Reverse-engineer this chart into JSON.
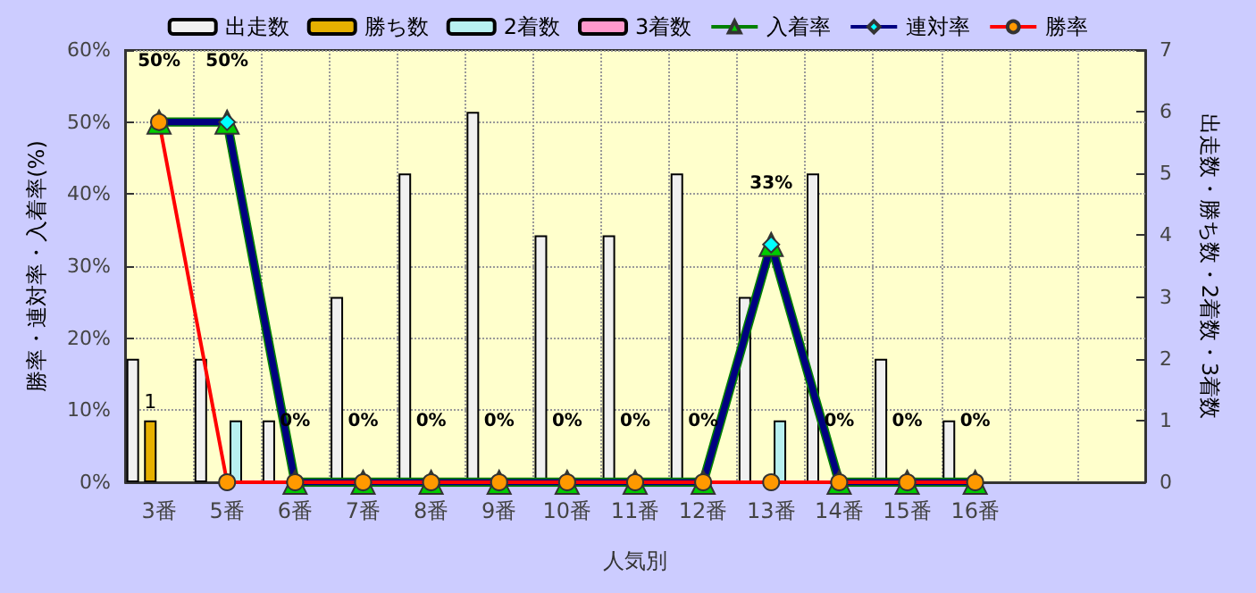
{
  "chart_data": {
    "type": "bar",
    "xlabel": "人気別",
    "ylabel": "勝率・連対率・入着率(%)",
    "y2label": "出走数・勝ち数・2着数・3着数",
    "categories": [
      "3番",
      "5番",
      "6番",
      "7番",
      "8番",
      "9番",
      "10番",
      "11番",
      "12番",
      "13番",
      "14番",
      "15番",
      "16番",
      null,
      null
    ],
    "series": [
      {
        "name": "出走数",
        "axis": "y2",
        "color": "#f0f0f0",
        "values": [
          2,
          2,
          1,
          3,
          5,
          6,
          4,
          4,
          5,
          3,
          5,
          2,
          1,
          null,
          null
        ]
      },
      {
        "name": "勝ち数",
        "axis": "y2",
        "color": "#e6b000",
        "values": [
          1,
          0,
          0,
          0,
          0,
          0,
          0,
          0,
          0,
          0,
          0,
          0,
          0,
          null,
          null
        ],
        "value_labels": [
          "1",
          null,
          null,
          null,
          null,
          null,
          null,
          null,
          null,
          null,
          null,
          null,
          null,
          null,
          null
        ]
      },
      {
        "name": "2着数",
        "axis": "y2",
        "color": "#b8f0f0",
        "values": [
          0,
          1,
          0,
          0,
          0,
          0,
          0,
          0,
          0,
          1,
          0,
          0,
          0,
          null,
          null
        ]
      },
      {
        "name": "3着数",
        "axis": "y2",
        "color": "#ff99cc",
        "values": [
          0,
          0,
          0,
          0,
          0,
          0,
          0,
          0,
          0,
          0,
          0,
          0,
          0,
          null,
          null
        ]
      },
      {
        "name": "入着率",
        "type": "line",
        "axis": "y",
        "color": "#008000",
        "marker": "triangle",
        "values": [
          50,
          50,
          0,
          0,
          0,
          0,
          0,
          0,
          0,
          33,
          0,
          0,
          0,
          null,
          null
        ],
        "value_labels": [
          "50%",
          "50%",
          "0%",
          "0%",
          "0%",
          "0%",
          "0%",
          "0%",
          "0%",
          "33%",
          "0%",
          "0%",
          "0%",
          null,
          null
        ]
      },
      {
        "name": "連対率",
        "type": "line",
        "axis": "y",
        "color": "#000080",
        "marker": "diamond",
        "values": [
          50,
          50,
          0,
          0,
          0,
          0,
          0,
          0,
          0,
          33,
          0,
          0,
          0,
          null,
          null
        ]
      },
      {
        "name": "勝率",
        "type": "line",
        "axis": "y",
        "color": "#ff0000",
        "marker": "circle",
        "values": [
          50,
          0,
          0,
          0,
          0,
          0,
          0,
          0,
          0,
          0,
          0,
          0,
          0,
          null,
          null
        ]
      }
    ],
    "ylim": [
      0,
      60
    ],
    "yticks": [
      {
        "value": 0,
        "label": "0%"
      },
      {
        "value": 10,
        "label": "10%"
      },
      {
        "value": 20,
        "label": "20%"
      },
      {
        "value": 30,
        "label": "30%"
      },
      {
        "value": 40,
        "label": "40%"
      },
      {
        "value": 50,
        "label": "50%"
      },
      {
        "value": 60,
        "label": "60%"
      }
    ],
    "y2lim": [
      0,
      7
    ],
    "y2ticks": [
      0,
      1,
      2,
      3,
      4,
      5,
      6,
      7
    ],
    "grid": true,
    "legend": "top"
  }
}
